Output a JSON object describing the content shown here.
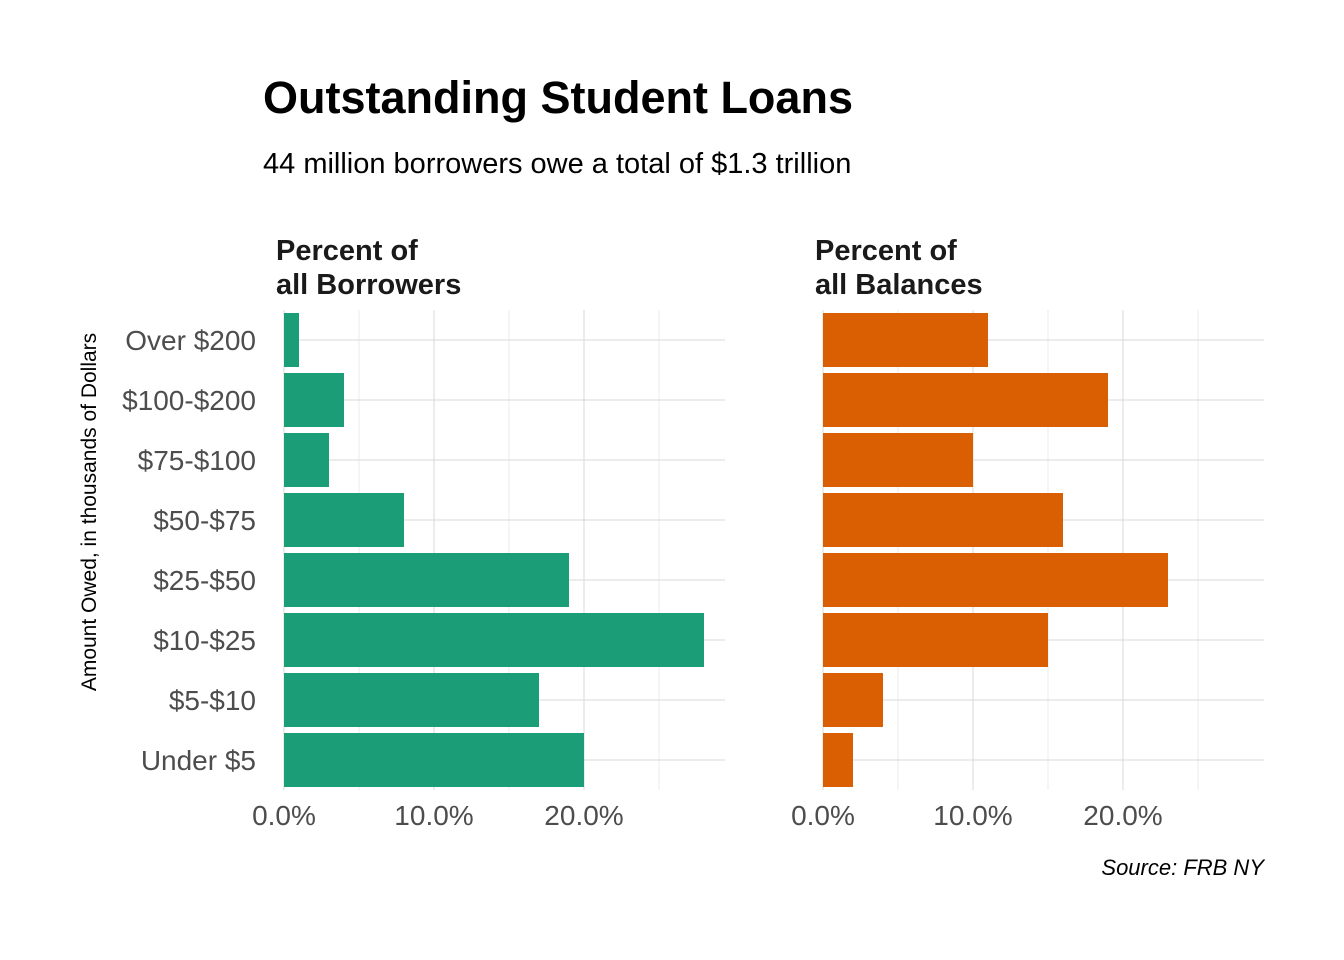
{
  "title": "Outstanding Student Loans",
  "subtitle": "44 million borrowers owe a total of $1.3 trillion",
  "ylabel": "Amount Owed, in thousands of Dollars",
  "source": "Source: FRB NY",
  "panels": [
    {
      "title_line1": "Percent of",
      "title_line2": "all Borrowers"
    },
    {
      "title_line1": "Percent of",
      "title_line2": "all Balances"
    }
  ],
  "chart_data": {
    "type": "bar",
    "orientation": "horizontal",
    "categories": [
      "Over $200",
      "$100-$200",
      "$75-$100",
      "$50-$75",
      "$25-$50",
      "$10-$25",
      "$5-$10",
      "Under $5"
    ],
    "series": [
      {
        "name": "Percent of all Borrowers",
        "color": "#1b9e77",
        "values": [
          1,
          4,
          3,
          8,
          19,
          28,
          17,
          20
        ]
      },
      {
        "name": "Percent of all Balances",
        "color": "#d95f02",
        "values": [
          11,
          19,
          10,
          16,
          23,
          15,
          4,
          2
        ]
      }
    ],
    "xlim": [
      0,
      29.4
    ],
    "xticks": [
      0,
      10,
      20
    ],
    "xtick_labels": [
      "0.0%",
      "10.0%",
      "20.0%"
    ],
    "grid": true
  }
}
